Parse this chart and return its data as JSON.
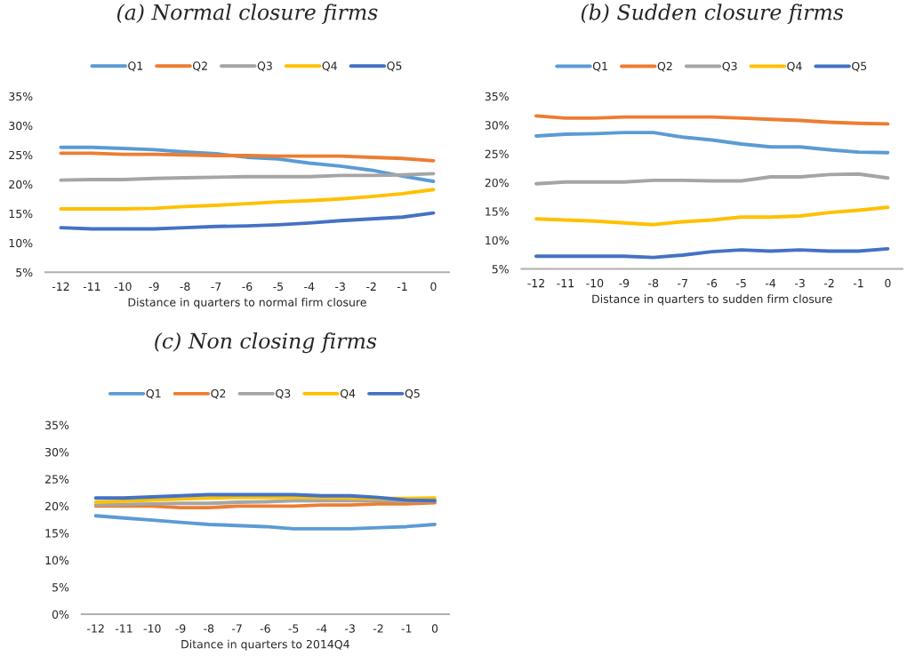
{
  "chart_data": [
    {
      "type": "line",
      "title": "(a) Normal closure firms",
      "xlabel": "Distance in quarters to normal firm closure",
      "categories": [
        "-12",
        "-11",
        "-10",
        "-9",
        "-8",
        "-7",
        "-6",
        "-5",
        "-4",
        "-3",
        "-2",
        "-1",
        "0"
      ],
      "ylim": [
        5,
        35
      ],
      "yticks": [
        {
          "value": 5,
          "label": "5%"
        },
        {
          "value": 10,
          "label": "10%"
        },
        {
          "value": 15,
          "label": "15%"
        },
        {
          "value": 20,
          "label": "20%"
        },
        {
          "value": 25,
          "label": "25%"
        },
        {
          "value": 30,
          "label": "30%"
        },
        {
          "value": 35,
          "label": "35%"
        }
      ],
      "grid": false,
      "legend": "top",
      "marker": "none",
      "line_style": "solid",
      "series": [
        {
          "name": "Q1",
          "color": "#5b9bd5",
          "values": [
            26.3,
            26.3,
            26.1,
            25.9,
            25.5,
            25.2,
            24.6,
            24.3,
            23.6,
            23.1,
            22.4,
            21.4,
            20.5
          ]
        },
        {
          "name": "Q2",
          "color": "#ed7d31",
          "values": [
            25.3,
            25.3,
            25.1,
            25.1,
            25.0,
            24.9,
            24.9,
            24.8,
            24.8,
            24.8,
            24.6,
            24.4,
            24.0
          ]
        },
        {
          "name": "Q3",
          "color": "#a5a5a5",
          "values": [
            20.7,
            20.8,
            20.8,
            21.0,
            21.1,
            21.2,
            21.3,
            21.3,
            21.3,
            21.5,
            21.5,
            21.6,
            21.8
          ]
        },
        {
          "name": "Q4",
          "color": "#ffc000",
          "values": [
            15.8,
            15.8,
            15.8,
            15.9,
            16.2,
            16.4,
            16.7,
            17.0,
            17.2,
            17.5,
            17.9,
            18.4,
            19.1
          ]
        },
        {
          "name": "Q5",
          "color": "#4472c4",
          "values": [
            12.6,
            12.4,
            12.4,
            12.4,
            12.6,
            12.8,
            12.9,
            13.1,
            13.4,
            13.8,
            14.1,
            14.4,
            15.1
          ]
        }
      ]
    },
    {
      "type": "line",
      "title": "(b) Sudden closure firms",
      "xlabel": "Distance in quarters to sudden firm closure",
      "categories": [
        "-12",
        "-11",
        "-10",
        "-9",
        "-8",
        "-7",
        "-6",
        "-5",
        "-4",
        "-3",
        "-2",
        "-1",
        "0"
      ],
      "ylim": [
        5,
        35
      ],
      "yticks": [
        {
          "value": 5,
          "label": "5%"
        },
        {
          "value": 10,
          "label": "10%"
        },
        {
          "value": 15,
          "label": "15%"
        },
        {
          "value": 20,
          "label": "20%"
        },
        {
          "value": 25,
          "label": "25%"
        },
        {
          "value": 30,
          "label": "30%"
        },
        {
          "value": 35,
          "label": "35%"
        }
      ],
      "grid": false,
      "legend": "top",
      "marker": "none",
      "line_style": "solid",
      "series": [
        {
          "name": "Q1",
          "color": "#5b9bd5",
          "values": [
            28.1,
            28.4,
            28.5,
            28.7,
            28.7,
            27.9,
            27.4,
            26.7,
            26.2,
            26.2,
            25.7,
            25.3,
            25.2
          ]
        },
        {
          "name": "Q2",
          "color": "#ed7d31",
          "values": [
            31.6,
            31.2,
            31.2,
            31.4,
            31.4,
            31.4,
            31.4,
            31.2,
            31.0,
            30.8,
            30.5,
            30.3,
            30.2
          ]
        },
        {
          "name": "Q3",
          "color": "#a5a5a5",
          "values": [
            19.8,
            20.1,
            20.1,
            20.1,
            20.4,
            20.4,
            20.3,
            20.3,
            21.0,
            21.0,
            21.4,
            21.5,
            20.8
          ]
        },
        {
          "name": "Q4",
          "color": "#ffc000",
          "values": [
            13.7,
            13.5,
            13.3,
            13.0,
            12.7,
            13.2,
            13.5,
            14.0,
            14.0,
            14.2,
            14.8,
            15.2,
            15.7
          ]
        },
        {
          "name": "Q5",
          "color": "#4472c4",
          "values": [
            7.2,
            7.2,
            7.2,
            7.2,
            7.0,
            7.4,
            8.0,
            8.3,
            8.1,
            8.3,
            8.1,
            8.1,
            8.5
          ]
        }
      ]
    },
    {
      "type": "line",
      "title": "(c) Non closing firms",
      "xlabel": "Ditance in quarters to 2014Q4",
      "categories": [
        "-12",
        "-11",
        "-10",
        "-9",
        "-8",
        "-7",
        "-6",
        "-5",
        "-4",
        "-3",
        "-2",
        "-1",
        "0"
      ],
      "ylim": [
        0,
        35
      ],
      "yticks": [
        {
          "value": 0,
          "label": "0%"
        },
        {
          "value": 5,
          "label": "5%"
        },
        {
          "value": 10,
          "label": "10%"
        },
        {
          "value": 15,
          "label": "15%"
        },
        {
          "value": 20,
          "label": "20%"
        },
        {
          "value": 25,
          "label": "25%"
        },
        {
          "value": 30,
          "label": "30%"
        },
        {
          "value": 35,
          "label": "35%"
        }
      ],
      "grid": false,
      "legend": "top",
      "marker": "none",
      "line_style": "solid",
      "series": [
        {
          "name": "Q1",
          "color": "#5b9bd5",
          "values": [
            18.2,
            17.8,
            17.4,
            17.0,
            16.6,
            16.4,
            16.2,
            15.8,
            15.8,
            15.8,
            16.0,
            16.2,
            16.6
          ]
        },
        {
          "name": "Q2",
          "color": "#ed7d31",
          "values": [
            20.0,
            20.0,
            20.0,
            19.7,
            19.7,
            20.0,
            20.0,
            20.0,
            20.2,
            20.2,
            20.4,
            20.4,
            20.6
          ]
        },
        {
          "name": "Q3",
          "color": "#a5a5a5",
          "values": [
            20.2,
            20.3,
            20.4,
            20.5,
            20.5,
            20.7,
            20.8,
            21.0,
            21.0,
            21.0,
            21.0,
            20.9,
            20.9
          ]
        },
        {
          "name": "Q4",
          "color": "#ffc000",
          "values": [
            20.7,
            20.9,
            21.1,
            21.3,
            21.5,
            21.6,
            21.6,
            21.6,
            21.6,
            21.5,
            21.4,
            21.4,
            21.5
          ]
        },
        {
          "name": "Q5",
          "color": "#4472c4",
          "values": [
            21.5,
            21.5,
            21.7,
            21.9,
            22.1,
            22.1,
            22.1,
            22.1,
            21.9,
            21.9,
            21.6,
            21.1,
            21.0
          ]
        }
      ]
    }
  ]
}
